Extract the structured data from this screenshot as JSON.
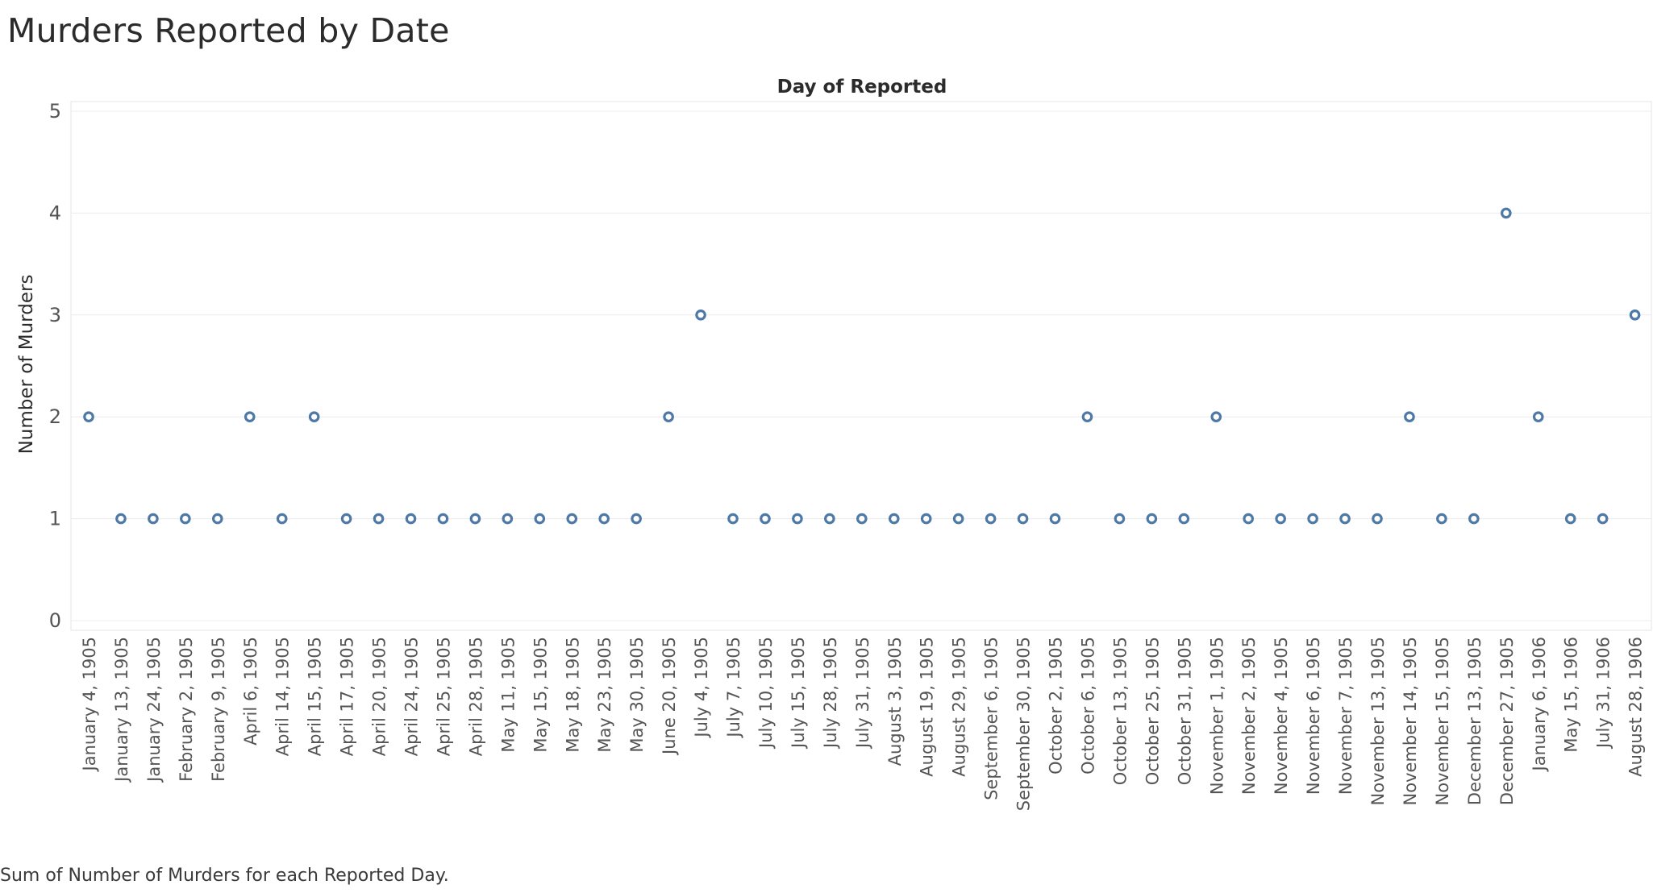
{
  "page": {
    "title": "Murders Reported by Date",
    "caption": "Sum of Number of Murders for each Reported Day."
  },
  "colors": {
    "mark": "#4e79a7",
    "grid": "#ececec",
    "text": "#333333"
  },
  "chart_data": {
    "type": "scatter",
    "title": "Murders Reported by Date",
    "column_header": "Day of Reported",
    "ylabel": "Number of Murders",
    "xlabel": "",
    "ylim": [
      0,
      5
    ],
    "yticks": [
      0,
      1,
      2,
      3,
      4,
      5
    ],
    "grid": true,
    "categories": [
      "January 4, 1905",
      "January 13, 1905",
      "January 24, 1905",
      "February 2, 1905",
      "February 9, 1905",
      "April 6, 1905",
      "April 14, 1905",
      "April 15, 1905",
      "April 17, 1905",
      "April 20, 1905",
      "April 24, 1905",
      "April 25, 1905",
      "April 28, 1905",
      "May 11, 1905",
      "May 15, 1905",
      "May 18, 1905",
      "May 23, 1905",
      "May 30, 1905",
      "June 20, 1905",
      "July 4, 1905",
      "July 7, 1905",
      "July 10, 1905",
      "July 15, 1905",
      "July 28, 1905",
      "July 31, 1905",
      "August 3, 1905",
      "August 19, 1905",
      "August 29, 1905",
      "September 6, 1905",
      "September 30, 1905",
      "October 2, 1905",
      "October 6, 1905",
      "October 13, 1905",
      "October 25, 1905",
      "October 31, 1905",
      "November 1, 1905",
      "November 2, 1905",
      "November 4, 1905",
      "November 6, 1905",
      "November 7, 1905",
      "November 13, 1905",
      "November 14, 1905",
      "November 15, 1905",
      "December 13, 1905",
      "December 27, 1905",
      "January 6, 1906",
      "May 15, 1906",
      "July 31, 1906",
      "August 28, 1906"
    ],
    "values": [
      2,
      1,
      1,
      1,
      1,
      2,
      1,
      2,
      1,
      1,
      1,
      1,
      1,
      1,
      1,
      1,
      1,
      1,
      2,
      3,
      1,
      1,
      1,
      1,
      1,
      1,
      1,
      1,
      1,
      1,
      1,
      2,
      1,
      1,
      1,
      2,
      1,
      1,
      1,
      1,
      1,
      2,
      1,
      1,
      4,
      2,
      1,
      1,
      3
    ]
  }
}
